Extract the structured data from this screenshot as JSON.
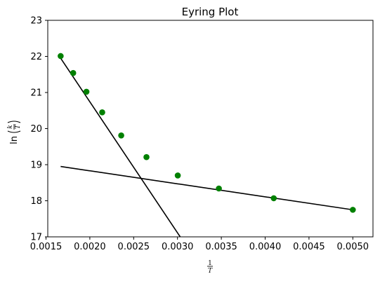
{
  "chart_data": {
    "type": "scatter",
    "title": "Eyring Plot",
    "xlabel": {
      "numerator": "1",
      "denominator": "T"
    },
    "ylabel": {
      "prefix": "ln",
      "numerator": "k",
      "denominator": "T"
    },
    "xlim": [
      0.00152,
      0.00523
    ],
    "ylim": [
      17,
      23
    ],
    "xticks": [
      0.0015,
      0.002,
      0.0025,
      0.003,
      0.0035,
      0.004,
      0.0045,
      0.005
    ],
    "xtick_labels": [
      "0.0015",
      "0.0020",
      "0.0025",
      "0.0030",
      "0.0035",
      "0.0040",
      "0.0045",
      "0.0050"
    ],
    "yticks": [
      17,
      18,
      19,
      20,
      21,
      22,
      23
    ],
    "ytick_labels": [
      "17",
      "18",
      "19",
      "20",
      "21",
      "22",
      "23"
    ],
    "grid": false,
    "series": [
      {
        "type": "scatter",
        "color": "#008000",
        "x": [
          0.001667,
          0.00181,
          0.001961,
          0.002141,
          0.002358,
          0.002646,
          0.003003,
          0.003472,
          0.004098,
          0.005
        ],
        "y": [
          22.01,
          21.54,
          21.02,
          20.45,
          19.81,
          19.21,
          18.7,
          18.34,
          18.07,
          17.75
        ]
      },
      {
        "type": "line",
        "color": "#000000",
        "x": [
          0.001667,
          0.003031
        ],
        "y": [
          21.95,
          17.0
        ]
      },
      {
        "type": "line",
        "color": "#000000",
        "x": [
          0.001667,
          0.005
        ],
        "y": [
          18.95,
          17.75
        ]
      }
    ]
  }
}
